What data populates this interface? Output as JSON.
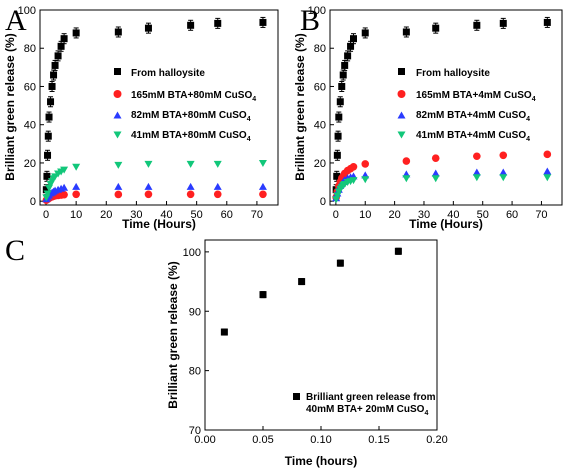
{
  "chart_data": [
    {
      "panel": "A",
      "type": "scatter",
      "xlabel": "Time (Hours)",
      "ylabel": "Brilliant green release (%)",
      "xlim": [
        -2,
        77
      ],
      "ylim": [
        -2,
        100
      ],
      "xticks": [
        0,
        10,
        20,
        30,
        40,
        50,
        60,
        70
      ],
      "yticks": [
        0,
        20,
        40,
        60,
        80,
        100
      ],
      "legend": "right-middle",
      "series": [
        {
          "name": "From halloysite",
          "marker": "square",
          "color": "#000000",
          "error_bars": true,
          "x": [
            0.1,
            0.3,
            0.5,
            0.75,
            1,
            1.5,
            2,
            2.5,
            3,
            4,
            5,
            6,
            10,
            24,
            34,
            48,
            57,
            72
          ],
          "y": [
            6,
            13,
            24,
            34,
            44,
            52,
            60,
            66,
            71,
            76,
            81,
            85,
            88,
            88.5,
            90.5,
            92,
            93,
            93.5
          ]
        },
        {
          "name": "165mM BTA+80mM CuSO4",
          "marker": "circle",
          "color": "#ff2020",
          "error_bars": false,
          "x": [
            0.1,
            0.5,
            1,
            1.5,
            2,
            2.5,
            3,
            4,
            5,
            6,
            10,
            24,
            34,
            48,
            57,
            72
          ],
          "y": [
            0.5,
            1,
            1.5,
            2,
            2.3,
            2.6,
            2.8,
            3,
            3.2,
            3.4,
            3.6,
            3.5,
            3.6,
            3.6,
            3.6,
            3.6
          ]
        },
        {
          "name": "82mM BTA+80mM CuSO4",
          "marker": "triangle-up",
          "color": "#2a3bff",
          "error_bars": false,
          "x": [
            0.1,
            0.5,
            1,
            1.5,
            2,
            2.5,
            3,
            4,
            5,
            6,
            10,
            24,
            34,
            48,
            57,
            72
          ],
          "y": [
            1,
            2,
            3,
            4,
            4.5,
            5,
            5.5,
            6,
            6.5,
            7,
            7.5,
            7.5,
            7.5,
            7.5,
            7.5,
            7.5
          ]
        },
        {
          "name": "41mM BTA+80mM CuSO4",
          "marker": "triangle-down",
          "color": "#12c77a",
          "error_bars": false,
          "x": [
            0.1,
            0.5,
            1,
            1.5,
            2,
            2.5,
            3,
            4,
            5,
            6,
            10,
            24,
            34,
            48,
            57,
            72
          ],
          "y": [
            2,
            4,
            7,
            9,
            10.5,
            12,
            13,
            14.5,
            15.5,
            16.5,
            18,
            19,
            19.5,
            19.5,
            19.5,
            20
          ]
        }
      ]
    },
    {
      "panel": "B",
      "type": "scatter",
      "xlabel": "Time (Hours)",
      "ylabel": "Brilliant green release (%)",
      "xlim": [
        -2,
        77
      ],
      "ylim": [
        -2,
        100
      ],
      "xticks": [
        0,
        10,
        20,
        30,
        40,
        50,
        60,
        70
      ],
      "yticks": [
        0,
        20,
        40,
        60,
        80,
        100
      ],
      "legend": "right-middle",
      "series": [
        {
          "name": "From halloysite",
          "marker": "square",
          "color": "#000000",
          "error_bars": true,
          "x": [
            0.1,
            0.3,
            0.5,
            0.75,
            1,
            1.5,
            2,
            2.5,
            3,
            4,
            5,
            6,
            10,
            24,
            34,
            48,
            57,
            72
          ],
          "y": [
            6,
            13,
            24,
            34,
            44,
            52,
            60,
            66,
            71,
            76,
            81,
            85,
            88,
            88.5,
            90.5,
            92,
            93,
            93.5
          ]
        },
        {
          "name": "165mM BTA+4mM CuSO4",
          "marker": "circle",
          "color": "#ff2020",
          "error_bars": false,
          "x": [
            0.1,
            0.5,
            1,
            1.5,
            2,
            2.5,
            3,
            4,
            5,
            6,
            10,
            24,
            34,
            48,
            57,
            72
          ],
          "y": [
            2,
            5,
            8,
            10,
            12,
            13,
            14.5,
            16,
            17,
            18,
            19.5,
            21,
            22.5,
            23.5,
            24,
            24.5
          ]
        },
        {
          "name": "82mM BTA+4mM CuSO4",
          "marker": "triangle-up",
          "color": "#2a3bff",
          "error_bars": false,
          "x": [
            0.1,
            0.5,
            1,
            1.5,
            2,
            2.5,
            3,
            4,
            5,
            6,
            10,
            24,
            34,
            48,
            57,
            72
          ],
          "y": [
            1.5,
            4,
            6,
            8,
            9,
            10,
            11,
            12,
            12.5,
            13,
            13.5,
            14,
            14.5,
            15,
            15,
            15.5
          ]
        },
        {
          "name": "41mM BTA+4mM CuSO4",
          "marker": "triangle-down",
          "color": "#12c77a",
          "error_bars": false,
          "x": [
            0.1,
            0.5,
            1,
            1.5,
            2,
            2.5,
            3,
            4,
            5,
            6,
            10,
            24,
            34,
            48,
            57,
            72
          ],
          "y": [
            1,
            3,
            5,
            6.5,
            7.5,
            8.5,
            9,
            10,
            10.5,
            11,
            11.5,
            12,
            12,
            12.5,
            12.5,
            12.5
          ]
        }
      ]
    },
    {
      "panel": "C",
      "type": "scatter",
      "xlabel": "Time (hours)",
      "ylabel": "Brilliant green release (%)",
      "xlim": [
        0,
        0.2
      ],
      "ylim": [
        70,
        102
      ],
      "xticks": [
        0.0,
        0.05,
        0.1,
        0.15,
        0.2
      ],
      "yticks": [
        70,
        80,
        90,
        100
      ],
      "legend": "bottom-right",
      "series": [
        {
          "name": "Brilliant green release from 40mM BTA+ 20mM CuSO4",
          "marker": "square",
          "color": "#000000",
          "error_bars": true,
          "x": [
            0.0167,
            0.05,
            0.0833,
            0.1167,
            0.1667
          ],
          "y": [
            86.5,
            92.8,
            95,
            98.1,
            100.1
          ]
        }
      ]
    }
  ],
  "panels": {
    "a": {
      "label": "A",
      "xlabel": "Time (Hours)",
      "ylabel": "Brilliant green release (%)",
      "xticks": [
        "0",
        "10",
        "20",
        "30",
        "40",
        "50",
        "60",
        "70"
      ],
      "yticks": [
        "0",
        "20",
        "40",
        "60",
        "80",
        "100"
      ],
      "legend": [
        {
          "main": "From halloysite",
          "sub": ""
        },
        {
          "main": "165mM BTA+80mM CuSO",
          "sub": "4"
        },
        {
          "main": "82mM BTA+80mM CuSO",
          "sub": "4"
        },
        {
          "main": "41mM BTA+80mM CuSO",
          "sub": "4"
        }
      ]
    },
    "b": {
      "label": "B",
      "xlabel": "Time (Hours)",
      "ylabel": "Brilliant green release (%)",
      "xticks": [
        "0",
        "10",
        "20",
        "30",
        "40",
        "50",
        "60",
        "70"
      ],
      "yticks": [
        "0",
        "20",
        "40",
        "60",
        "80",
        "100"
      ],
      "legend": [
        {
          "main": "From halloysite",
          "sub": ""
        },
        {
          "main": "165mM BTA+4mM CuSO",
          "sub": "4"
        },
        {
          "main": "82mM BTA+4mM CuSO",
          "sub": "4"
        },
        {
          "main": "41mM BTA+4mM CuSO",
          "sub": "4"
        }
      ]
    },
    "c": {
      "label": "C",
      "xlabel": "Time (hours)",
      "ylabel": "Brilliant green release (%)",
      "xticks": [
        "0.00",
        "0.05",
        "0.10",
        "0.15",
        "0.20"
      ],
      "yticks": [
        "70",
        "80",
        "90",
        "100"
      ],
      "legend_line1": "Brilliant green release from",
      "legend_line2_main": "40mM BTA+ 20mM CuSO",
      "legend_line2_sub": "4"
    }
  }
}
